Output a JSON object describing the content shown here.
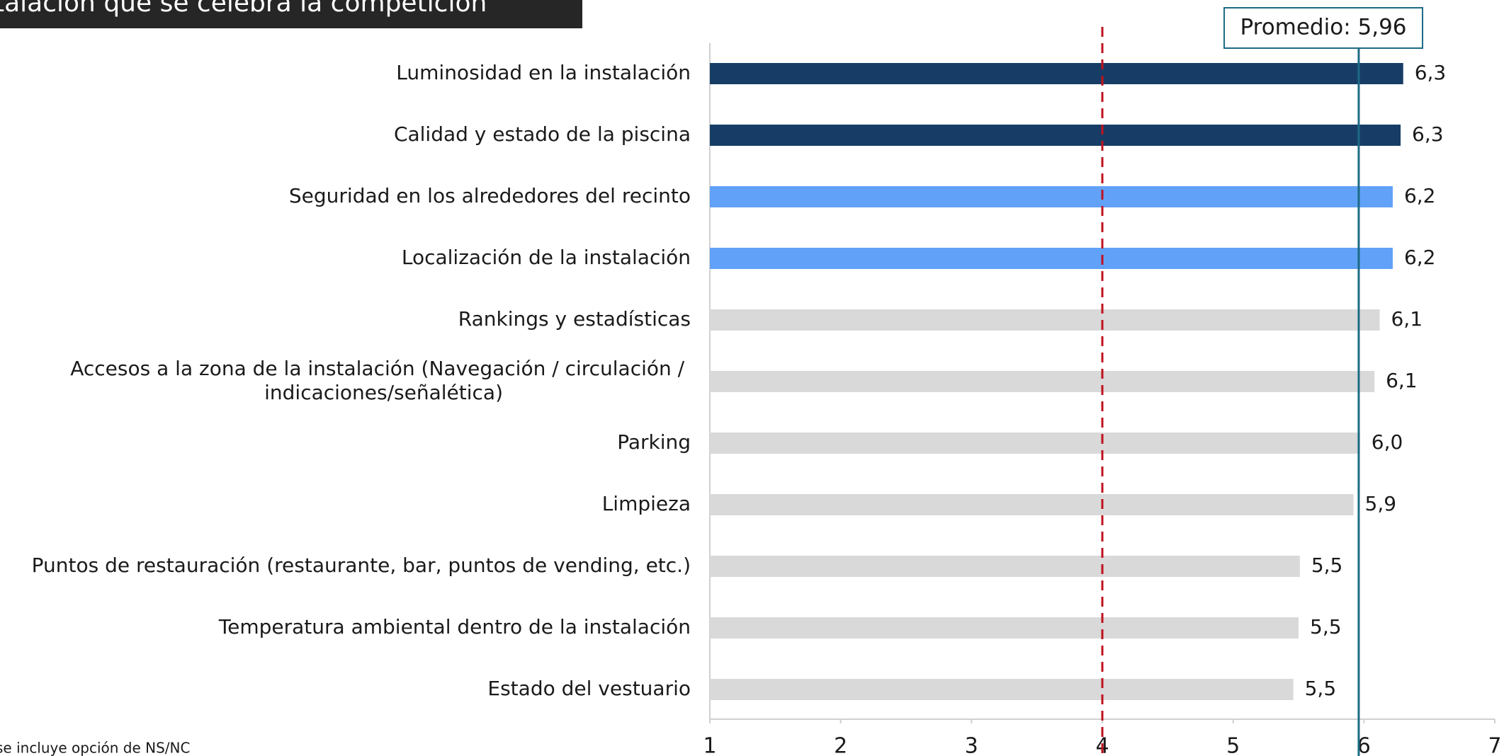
{
  "chart_data": {
    "type": "bar",
    "orientation": "horizontal",
    "title": "talación que se celebra la competición",
    "footnote": "se incluye opción de NS/NC",
    "categories": [
      "Luminosidad en la instalación",
      "Calidad y estado de la piscina",
      "Seguridad en los alrededores del recinto",
      "Localización de la instalación",
      "Rankings y estadísticas",
      "Accesos a la zona de la instalación (Navegación / circulación / indicaciones/señalética)",
      "Parking",
      "Limpieza",
      "Puntos de restauración (restaurante, bar, puntos de vending, etc.)",
      "Temperatura ambiental dentro de la instalación",
      "Estado del vestuario"
    ],
    "values": [
      6.3,
      6.28,
      6.22,
      6.22,
      6.12,
      6.08,
      5.97,
      5.92,
      5.51,
      5.5,
      5.46
    ],
    "value_labels": [
      "6,3",
      "6,3",
      "6,2",
      "6,2",
      "6,1",
      "6,1",
      "6,0",
      "5,9",
      "5,5",
      "5,5",
      "5,5"
    ],
    "colors": [
      "#173d67",
      "#173d67",
      "#61a2f8",
      "#61a2f8",
      "#d9d9d9",
      "#d9d9d9",
      "#d9d9d9",
      "#d9d9d9",
      "#d9d9d9",
      "#d9d9d9",
      "#d9d9d9"
    ],
    "xlim": [
      1,
      7
    ],
    "xticks": [
      1,
      2,
      3,
      4,
      5,
      6,
      7
    ],
    "reference_lines": [
      {
        "value": 4,
        "color": "#c0111f",
        "style": "dashed"
      },
      {
        "value": 5.96,
        "color": "#1d6a85",
        "style": "solid",
        "label": "Promedio: 5,96"
      }
    ]
  }
}
